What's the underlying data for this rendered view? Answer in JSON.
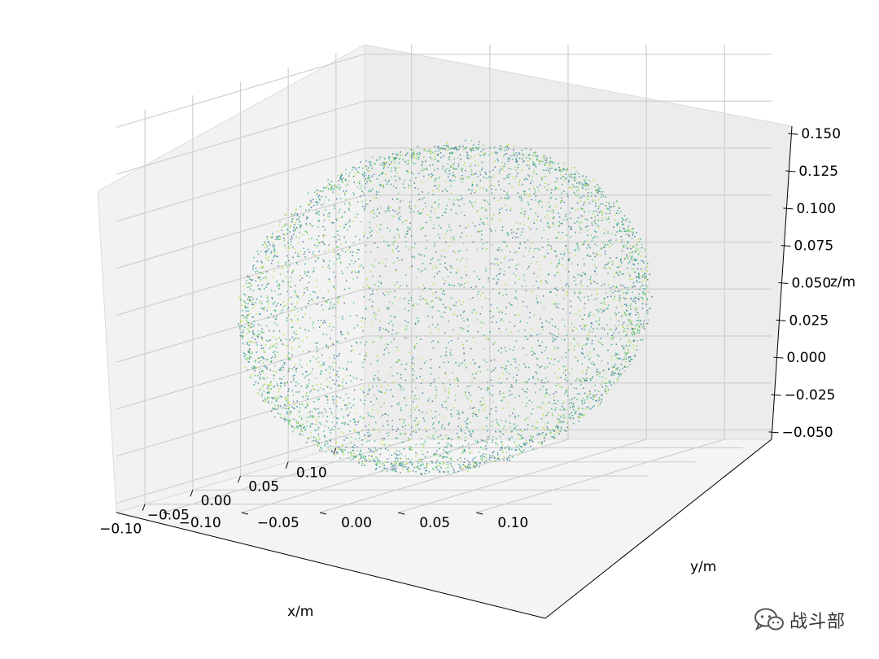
{
  "chart_data": {
    "type": "scatter",
    "projection": "3d",
    "title": "",
    "xlabel": "x/m",
    "ylabel": "y/m",
    "zlabel": "z/m",
    "xlim": [
      -0.13,
      0.13
    ],
    "ylim": [
      -0.13,
      0.13
    ],
    "zlim": [
      -0.055,
      0.155
    ],
    "x_ticks": [
      "−0.10",
      "−0.05",
      "0.00",
      "0.05",
      "0.10"
    ],
    "y_ticks": [
      "−0.10",
      "−0.05",
      "0.00",
      "0.05",
      "0.10"
    ],
    "z_ticks": [
      "−0.050",
      "−0.025",
      "0.000",
      "0.025",
      "0.050",
      "0.075",
      "0.100",
      "0.125",
      "0.150"
    ],
    "x_tick_values": [
      -0.1,
      -0.05,
      0,
      0.05,
      0.1
    ],
    "y_tick_values": [
      -0.1,
      -0.05,
      0,
      0.05,
      0.1
    ],
    "z_tick_values": [
      -0.05,
      -0.025,
      0,
      0.025,
      0.05,
      0.075,
      0.1,
      0.125,
      0.15
    ],
    "grid": true,
    "colormap": "viridis",
    "colors": [
      "#31688e",
      "#26828e",
      "#1f9e89",
      "#35b779",
      "#6ece58",
      "#b5de2b"
    ],
    "point_cloud_shape": "ellipsoid",
    "cloud_extent": {
      "x": [
        -0.11,
        0.11
      ],
      "y": [
        -0.11,
        0.11
      ],
      "z": [
        -0.05,
        0.12
      ]
    }
  },
  "watermark": {
    "text": "战斗部",
    "icon": "wechat-icon"
  }
}
